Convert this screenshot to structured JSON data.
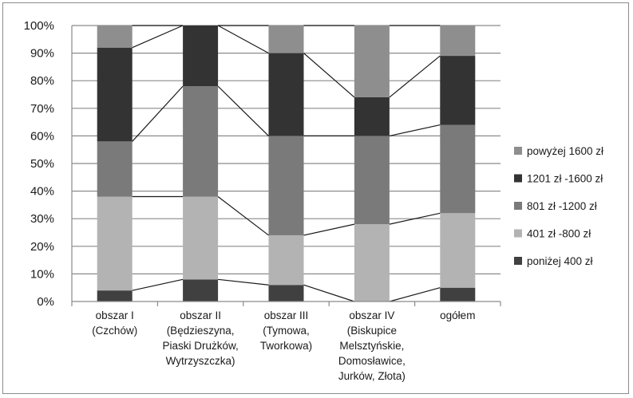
{
  "chart_data": {
    "type": "bar",
    "stacked": true,
    "percent": true,
    "categories": [
      [
        "obszar I",
        "(Czchów)"
      ],
      [
        "obszar II",
        "(Będzieszyna,",
        "Piaski Drużków,",
        "Wytrzyszczka)"
      ],
      [
        "obszar III",
        "(Tymowa,",
        "Tworkowa)"
      ],
      [
        "obszar IV",
        "(Biskupice",
        "Melsztyńskie,",
        "Domosławice,",
        "Jurków, Złota)"
      ],
      [
        "ogółem"
      ]
    ],
    "series": [
      {
        "name": "poniżej 400 zł",
        "color": "#404040",
        "values": [
          4,
          8,
          6,
          0,
          5
        ]
      },
      {
        "name": "401 zł -800 zł",
        "color": "#b3b3b3",
        "values": [
          34,
          30,
          18,
          28,
          27
        ]
      },
      {
        "name": "801 zł -1200 zł",
        "color": "#7a7a7a",
        "values": [
          20,
          40,
          36,
          32,
          32
        ]
      },
      {
        "name": "1201 zł -1600 zł",
        "color": "#333333",
        "values": [
          34,
          22,
          30,
          14,
          25
        ]
      },
      {
        "name": "powyżej 1600 zł",
        "color": "#8e8e8e",
        "values": [
          8,
          0,
          10,
          26,
          11
        ]
      }
    ],
    "yticks": [
      "0%",
      "10%",
      "20%",
      "30%",
      "40%",
      "50%",
      "60%",
      "70%",
      "80%",
      "90%",
      "100%"
    ],
    "ylim": [
      0,
      100
    ],
    "grid": true,
    "series_lines": true,
    "legend_position": "right"
  }
}
